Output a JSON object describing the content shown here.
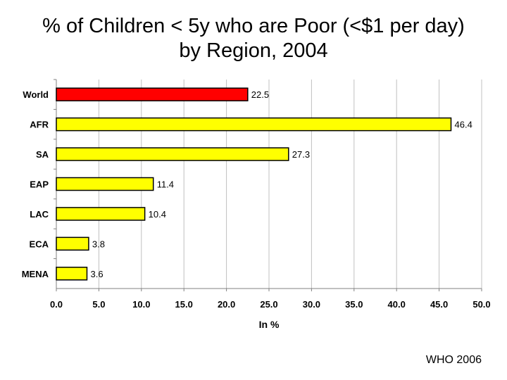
{
  "slide": {
    "title_line1": "% of Children < 5y who are Poor (<$1 per day)",
    "title_line2": "by Region, 2004",
    "source": "WHO 2006"
  },
  "chart_data": {
    "type": "bar",
    "orientation": "horizontal",
    "title": "% of Children < 5y who are Poor (<$1 per day) by Region, 2004",
    "xlabel": "In %",
    "ylabel": "",
    "categories": [
      "World",
      "AFR",
      "SA",
      "EAP",
      "LAC",
      "ECA",
      "MENA"
    ],
    "values": [
      22.5,
      46.4,
      27.3,
      11.4,
      10.4,
      3.8,
      3.6
    ],
    "value_labels": [
      "22.5",
      "46.4",
      "27.3",
      "11.4",
      "10.4",
      "3.8",
      "3.6"
    ],
    "xlim": [
      0,
      50
    ],
    "xticks": [
      "0.0",
      "5.0",
      "10.0",
      "15.0",
      "20.0",
      "25.0",
      "30.0",
      "35.0",
      "40.0",
      "45.0",
      "50.0"
    ],
    "grid": true,
    "legend": false,
    "colors": {
      "highlight": "#ff0000",
      "default": "#ffff00",
      "bar_edge": "#000000",
      "grid": "#c0c0c0",
      "axis": "#808080"
    },
    "highlight_category": "World"
  }
}
